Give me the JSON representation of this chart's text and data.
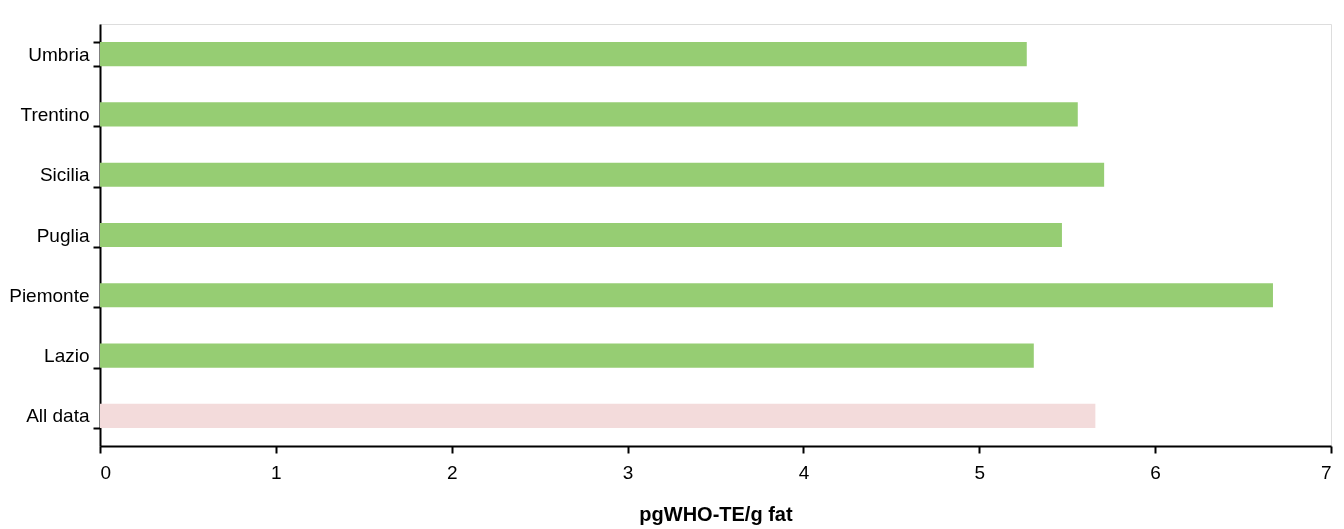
{
  "chart_data": {
    "type": "bar",
    "orientation": "horizontal",
    "xlabel": "pgWHO-TE/g fat",
    "categories": [
      "Umbria",
      "Trentino",
      "Sicilia",
      "Puglia",
      "Piemonte",
      "Lazio",
      "All data"
    ],
    "values": [
      5.27,
      5.56,
      5.71,
      5.47,
      6.67,
      5.31,
      5.66
    ],
    "colors": [
      "#96cd73",
      "#96cd73",
      "#96cd73",
      "#96cd73",
      "#96cd73",
      "#96cd73",
      "#f3dbdb"
    ],
    "xlim": [
      0,
      7
    ],
    "xticks": [
      0,
      1,
      2,
      3,
      4,
      5,
      6,
      7
    ],
    "grid": false
  }
}
